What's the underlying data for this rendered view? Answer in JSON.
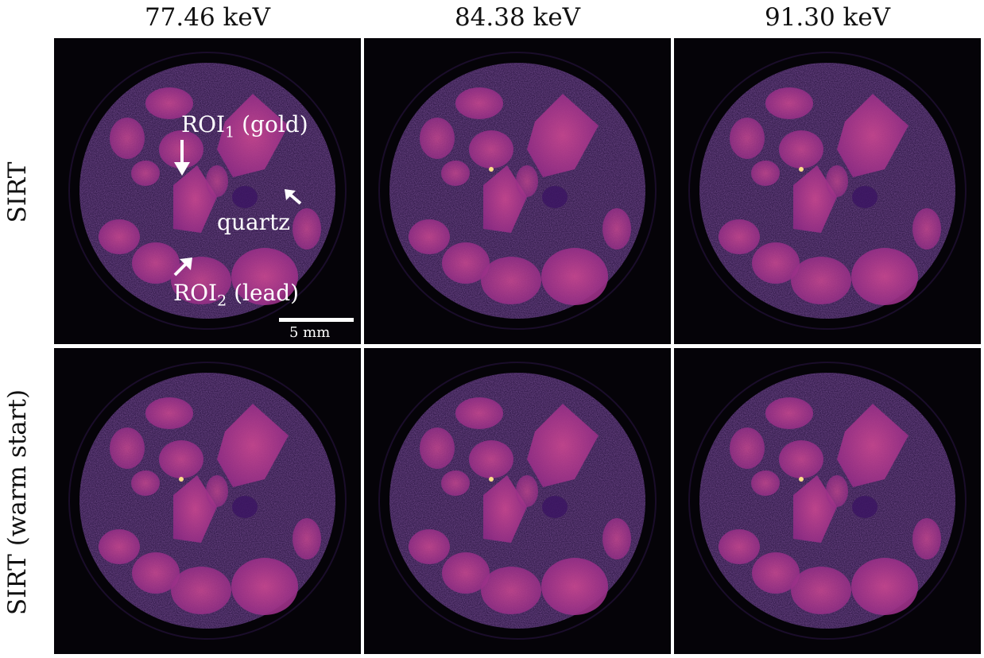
{
  "columns": [
    "77.46 keV",
    "84.38 keV",
    "91.30 keV"
  ],
  "rows": [
    "SIRT",
    "SIRT (warm start)"
  ],
  "annotations": {
    "roi1_name": "ROI",
    "roi1_sub": "1",
    "roi1_suffix": " (gold)",
    "roi2_name": "ROI",
    "roi2_sub": "2",
    "roi2_suffix": " (lead)",
    "quartz": "quartz",
    "scale_bar": "5 mm"
  },
  "colors": {
    "background": "#050308",
    "sample_disc": "#2a0d4a",
    "grain": "#b0378a",
    "grain_bright": "#d45a8c",
    "hotspot": "#ffe08a",
    "annotation": "#ffffff"
  }
}
